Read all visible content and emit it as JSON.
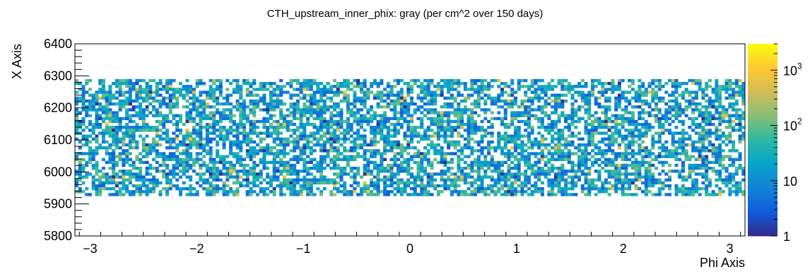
{
  "chart_data": {
    "type": "heatmap",
    "title": "CTH_upstream_inner_phix: gray (per cm^2 over 150 days)",
    "xlabel": "Phi Axis",
    "ylabel": "X Axis",
    "xlim": [
      -3.1416,
      3.1416
    ],
    "ylim": [
      5800,
      6400
    ],
    "x_ticks": [
      "−3",
      "−2",
      "−1",
      "0",
      "1",
      "2",
      "3"
    ],
    "y_ticks": [
      "5800",
      "5900",
      "6000",
      "6100",
      "6200",
      "6300",
      "6400"
    ],
    "z_scale": "log",
    "z_range": [
      1,
      3000
    ],
    "z_ticks": [
      {
        "base": "1",
        "exp": ""
      },
      {
        "base": "10",
        "exp": ""
      },
      {
        "base": "10",
        "exp": "2"
      },
      {
        "base": "10",
        "exp": "3"
      }
    ],
    "filled_y_range": [
      5925,
      6290
    ],
    "x_bins": 200,
    "y_bins": 40,
    "colormap": [
      "#352a87",
      "#0f5cdd",
      "#1481d6",
      "#06a4ca",
      "#2eb7a4",
      "#87bf77",
      "#d1bb59",
      "#fec832",
      "#f9fb0e"
    ]
  }
}
